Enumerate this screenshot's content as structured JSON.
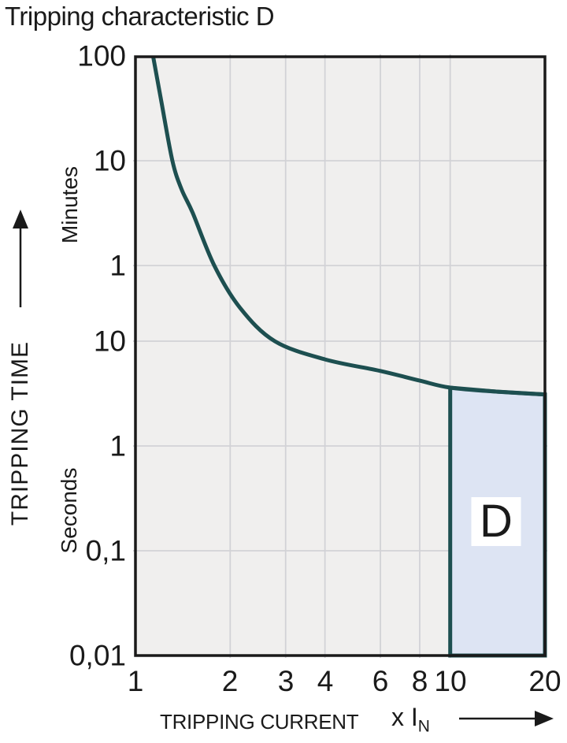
{
  "chart_data": {
    "type": "line",
    "title": "Tripping characteristic D",
    "xlabel": "TRIPPING CURRENT",
    "x_unit": {
      "text": "x I",
      "sub": "N"
    },
    "ylabel": "TRIPPING TIME",
    "y_unit_sections": [
      "Minutes",
      "Seconds"
    ],
    "x_scale": "log",
    "y_scale": "log",
    "x_range": [
      1,
      20
    ],
    "x_ticks": [
      {
        "label": "1",
        "value": 1
      },
      {
        "label": "2",
        "value": 2
      },
      {
        "label": "3",
        "value": 3
      },
      {
        "label": "4",
        "value": 4
      },
      {
        "label": "6",
        "value": 6
      },
      {
        "label": "8",
        "value": 8
      },
      {
        "label": "10",
        "value": 10
      },
      {
        "label": "20",
        "value": 20
      }
    ],
    "y_ticks": [
      {
        "label": "100",
        "unit": "min",
        "seconds": 6000
      },
      {
        "label": "10",
        "unit": "min",
        "seconds": 600
      },
      {
        "label": "1",
        "unit": "min",
        "seconds": 60
      },
      {
        "label": "10",
        "unit": "s",
        "seconds": 10
      },
      {
        "label": "1",
        "unit": "s",
        "seconds": 1
      },
      {
        "label": "0,1",
        "unit": "s",
        "seconds": 0.1
      },
      {
        "label": "0,01",
        "unit": "s",
        "seconds": 0.01
      }
    ],
    "grid": true,
    "series": [
      {
        "name": "D tripping characteristic curve",
        "points_x_multiple_vs_seconds": [
          [
            1.14,
            5800
          ],
          [
            1.21,
            2160
          ],
          [
            1.31,
            600
          ],
          [
            1.4,
            322
          ],
          [
            1.52,
            191
          ],
          [
            1.78,
            60
          ],
          [
            2.15,
            22
          ],
          [
            2.77,
            10
          ],
          [
            4.0,
            6.7
          ],
          [
            6.0,
            5.2
          ],
          [
            8.0,
            4.2
          ],
          [
            10.0,
            3.6
          ],
          [
            14.0,
            3.3
          ],
          [
            20.0,
            3.1
          ]
        ]
      }
    ],
    "region": {
      "label": "D",
      "x_range": [
        10,
        20
      ],
      "y_bottom_seconds": 0.01,
      "top_follows_curve": true,
      "label_anchor": [
        14,
        0.19
      ]
    },
    "colors": {
      "curve": "#1d4f50",
      "region_fill": "#dde4f3",
      "region_border": "#1d4f50",
      "plot_bg": "#f0efee",
      "grid": "#d2d2d6",
      "frame": "#1a1a1a",
      "text": "#1a1a1a"
    }
  }
}
